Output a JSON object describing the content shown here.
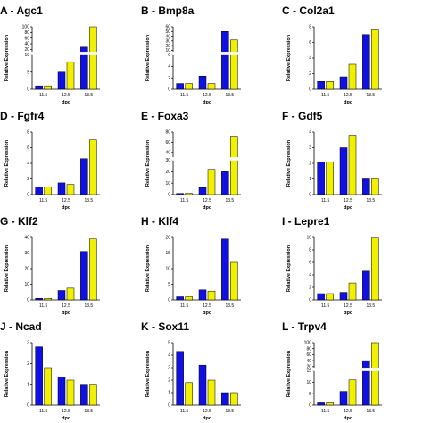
{
  "colors": {
    "series_a": "#1010e0",
    "series_b": "#f0f000",
    "axis": "#000000",
    "bar_stroke": "#000000"
  },
  "chart_data": [
    {
      "type": "bar",
      "title": "A - Agc1",
      "xlabel": "dpc",
      "ylabel": "Relative Expression",
      "categories": [
        "11.5",
        "12.5",
        "13.5"
      ],
      "series": [
        {
          "values": [
            1,
            5,
            28
          ]
        },
        {
          "values": [
            1,
            8,
            100
          ]
        }
      ],
      "broken_axis": true,
      "lower_ylim": [
        0,
        10
      ],
      "upper_ylim": [
        10,
        100
      ],
      "lower_ticks": [
        0,
        5,
        10
      ],
      "upper_ticks": [
        20,
        40,
        60,
        80,
        100
      ]
    },
    {
      "type": "bar",
      "title": "B - Bmp8a",
      "xlabel": "dpc",
      "ylabel": "Relative Expression",
      "categories": [
        "11.5",
        "12.5",
        "13.5"
      ],
      "series": [
        {
          "values": [
            1,
            2.3,
            50
          ]
        },
        {
          "values": [
            1,
            1,
            32
          ]
        }
      ],
      "broken_axis": true,
      "lower_ylim": [
        0,
        6
      ],
      "upper_ylim": [
        6,
        60
      ],
      "lower_ticks": [
        0,
        2,
        4,
        6
      ],
      "upper_ticks": [
        10,
        20,
        30,
        40,
        50,
        60
      ]
    },
    {
      "type": "bar",
      "title": "C - Col2a1",
      "xlabel": "dpc",
      "ylabel": "Relative Expression",
      "categories": [
        "11.5",
        "12.5",
        "13.5"
      ],
      "series": [
        {
          "values": [
            1,
            1.6,
            7
          ]
        },
        {
          "values": [
            1,
            3.2,
            7.6
          ]
        }
      ],
      "ylim": [
        0,
        8
      ],
      "yticks": [
        0,
        2,
        4,
        6,
        8
      ]
    },
    {
      "type": "bar",
      "title": "D - Fgfr4",
      "xlabel": "dpc",
      "ylabel": "Relative Expression",
      "categories": [
        "11.5",
        "12.5",
        "13.5"
      ],
      "series": [
        {
          "values": [
            1,
            1.5,
            4.6
          ]
        },
        {
          "values": [
            1,
            1.3,
            7
          ]
        }
      ],
      "ylim": [
        0,
        8
      ],
      "yticks": [
        0,
        2,
        4,
        6,
        8
      ]
    },
    {
      "type": "bar",
      "title": "E - Foxa3",
      "xlabel": "dpc",
      "ylabel": "Relative Expression",
      "categories": [
        "11.5",
        "12.5",
        "13.5"
      ],
      "series": [
        {
          "values": [
            1,
            6,
            20
          ]
        },
        {
          "values": [
            1,
            22,
            72
          ]
        }
      ],
      "broken_axis": true,
      "lower_ylim": [
        0,
        30
      ],
      "upper_ylim": [
        30,
        80
      ],
      "lower_ticks": [
        0,
        10,
        20,
        30
      ],
      "upper_ticks": [
        40,
        60,
        80
      ]
    },
    {
      "type": "bar",
      "title": "F - Gdf5",
      "xlabel": "dpc",
      "ylabel": "Relative Expression",
      "categories": [
        "11.5",
        "12.5",
        "13.5"
      ],
      "series": [
        {
          "values": [
            2.1,
            3,
            1
          ]
        },
        {
          "values": [
            2.1,
            3.8,
            1
          ]
        }
      ],
      "ylim": [
        0,
        4
      ],
      "yticks": [
        0,
        1,
        2,
        3,
        4
      ]
    },
    {
      "type": "bar",
      "title": "G - Klf2",
      "xlabel": "dpc",
      "ylabel": "Relative Expression",
      "categories": [
        "11.5",
        "12.5",
        "13.5"
      ],
      "series": [
        {
          "values": [
            1,
            6,
            31
          ]
        },
        {
          "values": [
            1,
            7.5,
            39
          ]
        }
      ],
      "ylim": [
        0,
        40
      ],
      "yticks": [
        0,
        10,
        20,
        30,
        40
      ]
    },
    {
      "type": "bar",
      "title": "H - Klf4",
      "xlabel": "dpc",
      "ylabel": "Relative Expression",
      "categories": [
        "11.5",
        "12.5",
        "13.5"
      ],
      "series": [
        {
          "values": [
            1,
            3.2,
            19.5
          ]
        },
        {
          "values": [
            1,
            2.8,
            12
          ]
        }
      ],
      "ylim": [
        0,
        20
      ],
      "yticks": [
        0,
        5,
        10,
        15,
        20
      ]
    },
    {
      "type": "bar",
      "title": "I - Lepre1",
      "xlabel": "dpc",
      "ylabel": "Relative Expression",
      "categories": [
        "11.5",
        "12.5",
        "13.5"
      ],
      "series": [
        {
          "values": [
            1,
            1.2,
            4.6
          ]
        },
        {
          "values": [
            1,
            2.7,
            9.9
          ]
        }
      ],
      "ylim": [
        0,
        10
      ],
      "yticks": [
        0,
        2,
        4,
        6,
        8,
        10
      ]
    },
    {
      "type": "bar",
      "title": "J - Ncad",
      "xlabel": "dpc",
      "ylabel": "Relative Expression",
      "categories": [
        "11.5",
        "12.5",
        "13.5"
      ],
      "series": [
        {
          "values": [
            2.8,
            1.35,
            1
          ]
        },
        {
          "values": [
            1.8,
            1.2,
            1
          ]
        }
      ],
      "ylim": [
        0,
        3
      ],
      "yticks": [
        0,
        1,
        2,
        3
      ]
    },
    {
      "type": "bar",
      "title": "K - Sox11",
      "xlabel": "dpc",
      "ylabel": "Relative Expression",
      "categories": [
        "11.5",
        "12.5",
        "13.5"
      ],
      "series": [
        {
          "values": [
            4.3,
            3.2,
            1
          ]
        },
        {
          "values": [
            1.8,
            2,
            1
          ]
        }
      ],
      "ylim": [
        0,
        5
      ],
      "yticks": [
        0,
        1,
        2,
        3,
        4,
        5
      ]
    },
    {
      "type": "bar",
      "title": "L - Trpv4",
      "xlabel": "dpc",
      "ylabel": "Relative Expression",
      "categories": [
        "11.5",
        "12.5",
        "13.5"
      ],
      "series": [
        {
          "values": [
            1,
            6,
            40
          ]
        },
        {
          "values": [
            1,
            11,
            100
          ]
        }
      ],
      "broken_axis": true,
      "lower_ylim": [
        0,
        15
      ],
      "upper_ylim": [
        15,
        100
      ],
      "lower_ticks": [
        0,
        5,
        10,
        15
      ],
      "upper_ticks": [
        20,
        40,
        60,
        80,
        100
      ]
    }
  ]
}
